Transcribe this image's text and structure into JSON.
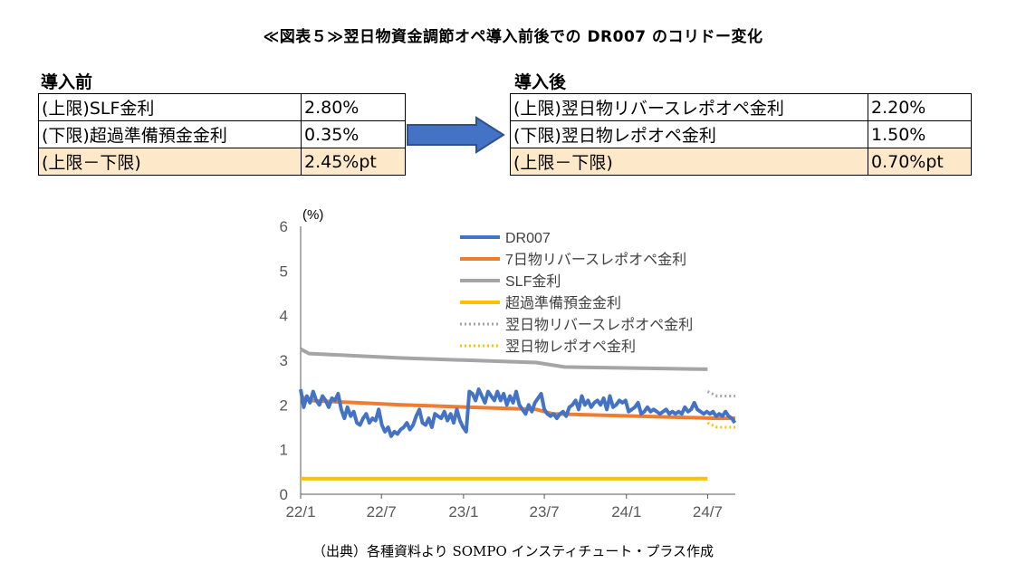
{
  "title": "≪図表５≫翌日物資金調節オペ導入前後での DR007 のコリドー変化",
  "before": {
    "header": "導入前",
    "rows": [
      {
        "label": "(上限)SLF金利",
        "value": "2.80%"
      },
      {
        "label": "(下限)超過準備預金金利",
        "value": "0.35%"
      },
      {
        "label": "(上限－下限)",
        "value": "2.45%pt"
      }
    ]
  },
  "after": {
    "header": "導入後",
    "rows": [
      {
        "label": "(上限)翌日物リバースレポオペ金利",
        "value": "2.20%"
      },
      {
        "label": "(下限)翌日物レポオペ金利",
        "value": "1.50%"
      },
      {
        "label": "(上限－下限)",
        "value": "0.70%pt"
      }
    ]
  },
  "arrow_icon": "right-arrow-icon",
  "source": "（出典）各種資料より SOMPO インスティチュート・プラス作成",
  "chart_data": {
    "type": "line",
    "ylabel": "(%)",
    "ylim": [
      0,
      6
    ],
    "yticks": [
      "0",
      "1",
      "2",
      "3",
      "4",
      "5",
      "6"
    ],
    "xlim": [
      "2022-01-01",
      "2024-09-01"
    ],
    "xticks": [
      {
        "label": "22/1",
        "date": "2022-01-01"
      },
      {
        "label": "22/7",
        "date": "2022-07-01"
      },
      {
        "label": "23/1",
        "date": "2023-01-01"
      },
      {
        "label": "23/7",
        "date": "2023-07-01"
      },
      {
        "label": "24/1",
        "date": "2024-01-01"
      },
      {
        "label": "24/7",
        "date": "2024-07-01"
      }
    ],
    "grid": false,
    "legend_position": "top-right",
    "series": [
      {
        "name": "DR007",
        "color": "#4472c4",
        "style": "solid",
        "width": 4,
        "points": [
          [
            "2022-01-01",
            2.35
          ],
          [
            "2022-01-08",
            1.95
          ],
          [
            "2022-01-15",
            2.2
          ],
          [
            "2022-01-22",
            2.05
          ],
          [
            "2022-01-29",
            2.3
          ],
          [
            "2022-02-05",
            2.1
          ],
          [
            "2022-02-12",
            2.0
          ],
          [
            "2022-02-19",
            2.2
          ],
          [
            "2022-02-26",
            2.1
          ],
          [
            "2022-03-05",
            1.95
          ],
          [
            "2022-03-12",
            2.15
          ],
          [
            "2022-03-19",
            2.1
          ],
          [
            "2022-03-26",
            2.25
          ],
          [
            "2022-04-02",
            1.9
          ],
          [
            "2022-04-09",
            1.7
          ],
          [
            "2022-04-16",
            1.95
          ],
          [
            "2022-04-23",
            1.75
          ],
          [
            "2022-04-30",
            1.85
          ],
          [
            "2022-05-07",
            1.6
          ],
          [
            "2022-05-14",
            1.55
          ],
          [
            "2022-05-21",
            1.7
          ],
          [
            "2022-05-28",
            1.8
          ],
          [
            "2022-06-04",
            1.6
          ],
          [
            "2022-06-11",
            1.7
          ],
          [
            "2022-06-18",
            1.65
          ],
          [
            "2022-06-25",
            1.9
          ],
          [
            "2022-07-02",
            1.55
          ],
          [
            "2022-07-09",
            1.4
          ],
          [
            "2022-07-16",
            1.5
          ],
          [
            "2022-07-23",
            1.3
          ],
          [
            "2022-07-30",
            1.4
          ],
          [
            "2022-08-06",
            1.35
          ],
          [
            "2022-08-13",
            1.45
          ],
          [
            "2022-08-20",
            1.5
          ],
          [
            "2022-08-27",
            1.6
          ],
          [
            "2022-09-03",
            1.45
          ],
          [
            "2022-09-10",
            1.55
          ],
          [
            "2022-09-17",
            1.75
          ],
          [
            "2022-09-24",
            1.9
          ],
          [
            "2022-10-01",
            1.6
          ],
          [
            "2022-10-08",
            1.55
          ],
          [
            "2022-10-15",
            1.7
          ],
          [
            "2022-10-22",
            1.5
          ],
          [
            "2022-10-29",
            1.8
          ],
          [
            "2022-11-05",
            1.75
          ],
          [
            "2022-11-12",
            1.7
          ],
          [
            "2022-11-19",
            1.85
          ],
          [
            "2022-11-26",
            1.65
          ],
          [
            "2022-12-03",
            1.8
          ],
          [
            "2022-12-10",
            1.6
          ],
          [
            "2022-12-17",
            1.9
          ],
          [
            "2022-12-24",
            1.65
          ],
          [
            "2022-12-31",
            1.5
          ],
          [
            "2023-01-07",
            1.4
          ],
          [
            "2023-01-14",
            2.3
          ],
          [
            "2023-01-21",
            2.25
          ],
          [
            "2023-01-28",
            2.1
          ],
          [
            "2023-02-04",
            2.35
          ],
          [
            "2023-02-11",
            2.2
          ],
          [
            "2023-02-18",
            2.05
          ],
          [
            "2023-02-25",
            2.3
          ],
          [
            "2023-03-04",
            2.2
          ],
          [
            "2023-03-11",
            2.1
          ],
          [
            "2023-03-18",
            2.3
          ],
          [
            "2023-03-25",
            2.1
          ],
          [
            "2023-04-01",
            2.25
          ],
          [
            "2023-04-08",
            2.0
          ],
          [
            "2023-04-15",
            2.2
          ],
          [
            "2023-04-22",
            2.05
          ],
          [
            "2023-04-29",
            2.3
          ],
          [
            "2023-05-06",
            2.0
          ],
          [
            "2023-05-13",
            1.9
          ],
          [
            "2023-05-20",
            1.8
          ],
          [
            "2023-05-27",
            2.0
          ],
          [
            "2023-06-03",
            1.85
          ],
          [
            "2023-06-10",
            2.05
          ],
          [
            "2023-06-17",
            2.15
          ],
          [
            "2023-06-24",
            2.25
          ],
          [
            "2023-07-01",
            1.9
          ],
          [
            "2023-07-08",
            1.8
          ],
          [
            "2023-07-15",
            1.75
          ],
          [
            "2023-07-22",
            1.8
          ],
          [
            "2023-07-29",
            1.7
          ],
          [
            "2023-08-05",
            1.8
          ],
          [
            "2023-08-12",
            1.85
          ],
          [
            "2023-08-19",
            1.75
          ],
          [
            "2023-08-26",
            1.95
          ],
          [
            "2023-09-02",
            2.0
          ],
          [
            "2023-09-09",
            2.1
          ],
          [
            "2023-09-16",
            1.9
          ],
          [
            "2023-09-23",
            2.2
          ],
          [
            "2023-09-30",
            2.0
          ],
          [
            "2023-10-07",
            2.1
          ],
          [
            "2023-10-14",
            1.95
          ],
          [
            "2023-10-21",
            2.05
          ],
          [
            "2023-10-28",
            2.1
          ],
          [
            "2023-11-04",
            2.0
          ],
          [
            "2023-11-11",
            2.15
          ],
          [
            "2023-11-18",
            1.9
          ],
          [
            "2023-11-25",
            2.2
          ],
          [
            "2023-12-02",
            1.95
          ],
          [
            "2023-12-09",
            2.0
          ],
          [
            "2023-12-16",
            2.1
          ],
          [
            "2023-12-23",
            2.05
          ],
          [
            "2023-12-30",
            2.1
          ],
          [
            "2024-01-06",
            1.85
          ],
          [
            "2024-01-13",
            1.9
          ],
          [
            "2024-01-20",
            1.95
          ],
          [
            "2024-01-27",
            2.05
          ],
          [
            "2024-02-03",
            1.8
          ],
          [
            "2024-02-10",
            1.85
          ],
          [
            "2024-02-17",
            1.95
          ],
          [
            "2024-02-24",
            1.85
          ],
          [
            "2024-03-02",
            1.9
          ],
          [
            "2024-03-09",
            1.85
          ],
          [
            "2024-03-16",
            1.8
          ],
          [
            "2024-03-23",
            1.85
          ],
          [
            "2024-03-30",
            1.9
          ],
          [
            "2024-04-06",
            1.8
          ],
          [
            "2024-04-13",
            1.85
          ],
          [
            "2024-04-20",
            1.8
          ],
          [
            "2024-04-27",
            1.85
          ],
          [
            "2024-05-04",
            1.8
          ],
          [
            "2024-05-11",
            1.95
          ],
          [
            "2024-05-18",
            1.85
          ],
          [
            "2024-05-25",
            1.9
          ],
          [
            "2024-06-01",
            2.05
          ],
          [
            "2024-06-08",
            1.9
          ],
          [
            "2024-06-15",
            1.85
          ],
          [
            "2024-06-22",
            1.8
          ],
          [
            "2024-06-29",
            1.85
          ],
          [
            "2024-07-06",
            1.8
          ],
          [
            "2024-07-13",
            1.85
          ],
          [
            "2024-07-20",
            1.75
          ],
          [
            "2024-07-27",
            1.8
          ],
          [
            "2024-08-03",
            1.75
          ],
          [
            "2024-08-10",
            1.85
          ],
          [
            "2024-08-17",
            1.75
          ],
          [
            "2024-08-24",
            1.7
          ],
          [
            "2024-08-31",
            1.6
          ]
        ]
      },
      {
        "name": "7日物リバースレポオペ金利",
        "color": "#ed7d31",
        "style": "solid",
        "width": 4,
        "points": [
          [
            "2022-01-01",
            2.2
          ],
          [
            "2022-01-20",
            2.1
          ],
          [
            "2022-08-15",
            2.0
          ],
          [
            "2023-06-13",
            1.9
          ],
          [
            "2023-07-20",
            1.8
          ],
          [
            "2024-07-22",
            1.7
          ],
          [
            "2024-09-01",
            1.7
          ]
        ]
      },
      {
        "name": "SLF金利",
        "color": "#a5a5a5",
        "style": "solid",
        "width": 4,
        "points": [
          [
            "2022-01-01",
            3.25
          ],
          [
            "2022-01-20",
            3.15
          ],
          [
            "2022-08-15",
            3.05
          ],
          [
            "2023-06-13",
            2.95
          ],
          [
            "2023-08-15",
            2.85
          ],
          [
            "2024-07-01",
            2.8
          ]
        ]
      },
      {
        "name": "超過準備預金金利",
        "color": "#ffc000",
        "style": "solid",
        "width": 4,
        "points": [
          [
            "2022-01-01",
            0.35
          ],
          [
            "2024-07-01",
            0.35
          ]
        ]
      },
      {
        "name": "翌日物リバースレポオペ金利",
        "color": "#a5a5a5",
        "style": "dotted",
        "width": 3,
        "points": [
          [
            "2024-07-01",
            2.3
          ],
          [
            "2024-07-22",
            2.2
          ],
          [
            "2024-09-01",
            2.2
          ]
        ]
      },
      {
        "name": "翌日物レポオペ金利",
        "color": "#ffc000",
        "style": "dotted",
        "width": 3,
        "points": [
          [
            "2024-07-01",
            1.6
          ],
          [
            "2024-07-22",
            1.5
          ],
          [
            "2024-09-01",
            1.5
          ]
        ]
      }
    ]
  }
}
